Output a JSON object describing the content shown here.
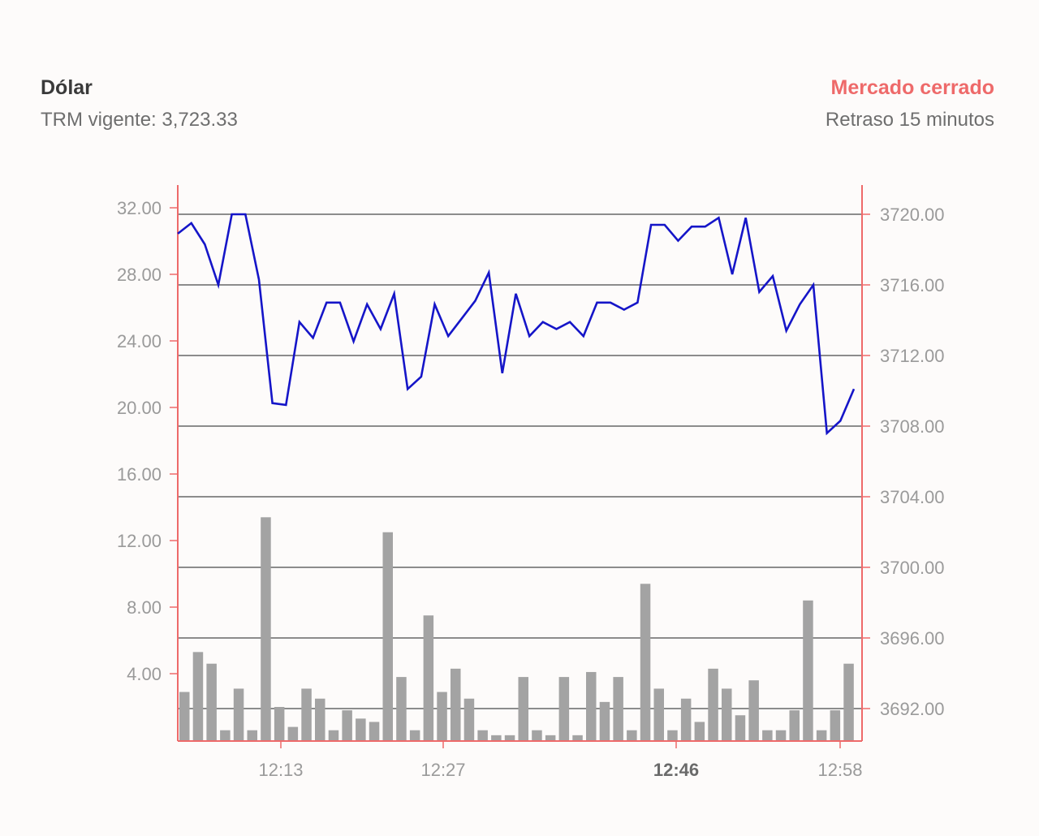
{
  "header": {
    "title": "Dólar",
    "trm": "TRM vigente: 3,723.33",
    "status": "Mercado cerrado",
    "delay": "Retraso 15 minutos"
  },
  "colors": {
    "line": "#1515c8",
    "bars": "#a3a3a3",
    "axis": "#ee6a6a",
    "grid": "#4a4a4a",
    "status": "#ee6a6a"
  },
  "chart_data": {
    "type": "line",
    "x_ticks": [
      "12:13",
      "12:27",
      "12:46",
      "12:58"
    ],
    "active_x_tick": "12:46",
    "left_axis": {
      "ticks": [
        "32.00",
        "28.00",
        "24.00",
        "20.00",
        "16.00",
        "12.00",
        "8.00",
        "4.00"
      ],
      "range": [
        0,
        32
      ]
    },
    "right_axis": {
      "ticks": [
        "3720.00",
        "3716.00",
        "3712.00",
        "3708.00",
        "3704.00",
        "3700.00",
        "3696.00",
        "3692.00"
      ],
      "range": [
        3690,
        3721.5
      ]
    },
    "grid": true,
    "series": [
      {
        "type": "line",
        "axis": "right",
        "values": [
          3718.9,
          3719.5,
          3718.3,
          3716.0,
          3720.0,
          3720.0,
          3716.3,
          3709.3,
          3709.2,
          3713.9,
          3713.0,
          3715.0,
          3715.0,
          3712.8,
          3714.9,
          3713.5,
          3715.5,
          3710.1,
          3710.8,
          3714.9,
          3713.1,
          3714.1,
          3715.1,
          3716.7,
          3711.0,
          3715.5,
          3713.1,
          3713.9,
          3713.5,
          3713.9,
          3713.1,
          3715.0,
          3715.0,
          3714.6,
          3715.0,
          3719.4,
          3719.4,
          3718.5,
          3719.3,
          3719.3,
          3719.8,
          3716.6,
          3719.8,
          3715.6,
          3716.5,
          3713.4,
          3714.9,
          3716.0,
          3707.6,
          3708.3,
          3710.1
        ]
      },
      {
        "type": "bar",
        "axis": "left",
        "values": [
          2.9,
          5.3,
          4.6,
          0.6,
          3.1,
          0.6,
          13.4,
          2.0,
          0.8,
          3.1,
          2.5,
          0.6,
          1.8,
          1.3,
          1.1,
          12.5,
          3.8,
          0.6,
          7.5,
          2.9,
          4.3,
          2.5,
          0.6,
          0.3,
          0.3,
          3.8,
          0.6,
          0.3,
          3.8,
          0.3,
          4.1,
          2.3,
          3.8,
          0.6,
          9.4,
          3.1,
          0.6,
          2.5,
          1.1,
          4.3,
          3.1,
          1.5,
          3.6,
          0.6,
          0.6,
          1.8,
          8.4,
          0.6,
          1.8,
          4.6
        ]
      }
    ]
  }
}
